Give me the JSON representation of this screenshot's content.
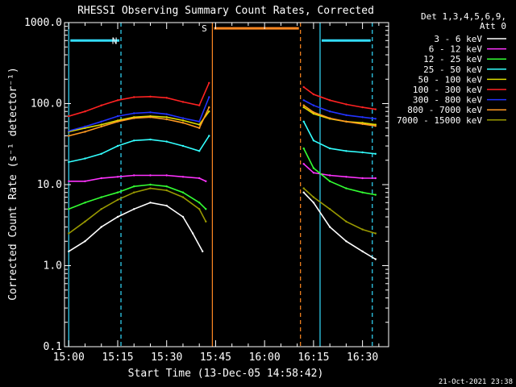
{
  "chart_data": {
    "type": "line",
    "title": "RHESSI Observing Summary Count Rates, Corrected",
    "xlabel": "Start Time (13-Dec-05 14:58:42)",
    "ylabel": "Corrected Count Rate (s⁻¹ detector⁻¹)",
    "xlim": [
      "14:58:42",
      "16:38:00"
    ],
    "ylim": [
      0.1,
      1000
    ],
    "yscale": "log",
    "x_ticks": [
      "15:00",
      "15:15",
      "15:30",
      "15:45",
      "16:00",
      "16:15",
      "16:30"
    ],
    "y_ticks": [
      "0.1",
      "1.0",
      "10.0",
      "100.0",
      "1000.0"
    ],
    "legend_header": [
      "Det 1,3,4,5,6,9,",
      "Att 0"
    ],
    "legend_position": "right",
    "series": [
      {
        "name": "3 - 6 keV",
        "color": "#ffffff",
        "x": [
          "15:00",
          "15:05",
          "15:10",
          "15:15",
          "15:20",
          "15:25",
          "15:30",
          "15:35",
          "15:38",
          "15:41",
          "16:12",
          "16:15",
          "16:20",
          "16:25",
          "16:30",
          "16:34"
        ],
        "values": [
          1.5,
          2.0,
          3.0,
          4.0,
          5.0,
          6.0,
          5.5,
          4.0,
          2.5,
          1.5,
          8.0,
          6.0,
          3.0,
          2.0,
          1.5,
          1.2
        ]
      },
      {
        "name": "6 - 12 keV",
        "color": "#ff33ff",
        "x": [
          "15:00",
          "15:05",
          "15:10",
          "15:15",
          "15:20",
          "15:25",
          "15:30",
          "15:35",
          "15:40",
          "15:42",
          "16:12",
          "16:15",
          "16:20",
          "16:25",
          "16:30",
          "16:34"
        ],
        "values": [
          11,
          11,
          12,
          12.5,
          13,
          13,
          13,
          12.5,
          12,
          11,
          18,
          14,
          13,
          12.5,
          12,
          12
        ]
      },
      {
        "name": "12 - 25 keV",
        "color": "#33ff33",
        "x": [
          "15:00",
          "15:05",
          "15:10",
          "15:15",
          "15:20",
          "15:25",
          "15:30",
          "15:35",
          "15:40",
          "15:42",
          "16:12",
          "16:15",
          "16:20",
          "16:25",
          "16:30",
          "16:34"
        ],
        "values": [
          5,
          6,
          7,
          8,
          9.5,
          10,
          9.5,
          8,
          6,
          5,
          28,
          16,
          11,
          9,
          8,
          7.5
        ]
      },
      {
        "name": "25 - 50 keV",
        "color": "#33ffff",
        "x": [
          "15:00",
          "15:05",
          "15:10",
          "15:15",
          "15:20",
          "15:25",
          "15:30",
          "15:35",
          "15:40",
          "15:43",
          "16:12",
          "16:15",
          "16:20",
          "16:25",
          "16:30",
          "16:34"
        ],
        "values": [
          19,
          21,
          24,
          30,
          35,
          36,
          34,
          30,
          26,
          40,
          60,
          35,
          28,
          26,
          25,
          24
        ]
      },
      {
        "name": "50 - 100 keV",
        "color": "#dddd00",
        "x": [
          "15:00",
          "15:05",
          "15:10",
          "15:15",
          "15:20",
          "15:25",
          "15:30",
          "15:35",
          "15:40",
          "15:43",
          "16:12",
          "16:15",
          "16:20",
          "16:25",
          "16:30",
          "16:34"
        ],
        "values": [
          45,
          50,
          55,
          62,
          68,
          70,
          68,
          62,
          55,
          80,
          90,
          75,
          65,
          60,
          58,
          55
        ]
      },
      {
        "name": "100 - 300 keV",
        "color": "#ff2222",
        "x": [
          "15:00",
          "15:05",
          "15:10",
          "15:15",
          "15:20",
          "15:25",
          "15:30",
          "15:35",
          "15:40",
          "15:43",
          "16:12",
          "16:15",
          "16:20",
          "16:25",
          "16:30",
          "16:34"
        ],
        "values": [
          70,
          80,
          95,
          110,
          120,
          122,
          118,
          105,
          95,
          180,
          160,
          130,
          110,
          98,
          90,
          85
        ]
      },
      {
        "name": "300 - 800 keV",
        "color": "#2233ff",
        "x": [
          "15:00",
          "15:05",
          "15:10",
          "15:15",
          "15:20",
          "15:25",
          "15:30",
          "15:35",
          "15:40",
          "15:43",
          "16:12",
          "16:15",
          "16:20",
          "16:25",
          "16:30",
          "16:34"
        ],
        "values": [
          46,
          52,
          60,
          70,
          76,
          78,
          74,
          66,
          60,
          120,
          110,
          95,
          80,
          72,
          68,
          65
        ]
      },
      {
        "name": "800 - 7000 keV",
        "color": "#ff9922",
        "x": [
          "15:00",
          "15:05",
          "15:10",
          "15:15",
          "15:20",
          "15:25",
          "15:30",
          "15:35",
          "15:40",
          "15:43",
          "16:12",
          "16:15",
          "16:20",
          "16:25",
          "16:30",
          "16:34"
        ],
        "values": [
          40,
          45,
          52,
          60,
          66,
          68,
          64,
          58,
          50,
          90,
          95,
          78,
          66,
          60,
          56,
          53
        ]
      },
      {
        "name": "7000 - 15000 keV",
        "color": "#999900",
        "x": [
          "15:00",
          "15:05",
          "15:10",
          "15:15",
          "15:20",
          "15:25",
          "15:30",
          "15:35",
          "15:40",
          "15:42",
          "16:12",
          "16:15",
          "16:20",
          "16:25",
          "16:30",
          "16:34"
        ],
        "values": [
          2.5,
          3.5,
          5,
          6.5,
          8,
          9,
          8.5,
          7,
          5,
          3.5,
          9,
          7,
          5,
          3.5,
          2.8,
          2.5
        ]
      }
    ],
    "annotations": [
      {
        "label": "N",
        "color": "#33ddff",
        "x_start": "15:00",
        "x_end": "15:16",
        "bar_level": 600,
        "boundaries": [
          "15:00",
          "15:16"
        ]
      },
      {
        "label": "",
        "color": "#33ddff",
        "x_start": "16:17",
        "x_end": "16:33",
        "bar_level": 600,
        "boundaries": [
          "16:17",
          "16:33"
        ]
      },
      {
        "label": "S",
        "color": "#ff8822",
        "x_start": "15:44",
        "x_end": "16:11",
        "bar_level": 850,
        "boundaries": [
          "15:44",
          "16:11"
        ]
      }
    ],
    "grid": false,
    "timestamp": "21-Oct-2021 23:38"
  }
}
